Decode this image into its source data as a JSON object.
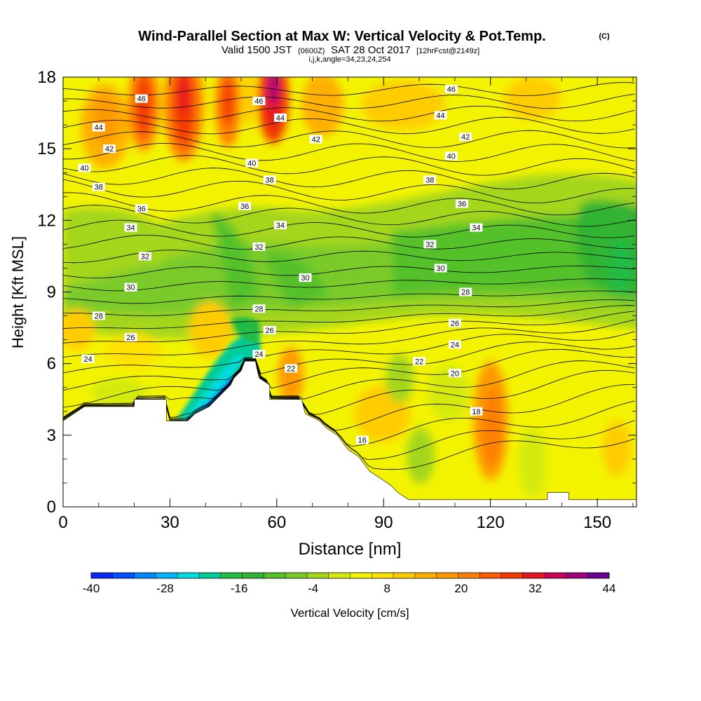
{
  "chart_data": {
    "type": "heatmap",
    "title": "Wind-Parallel Section at Max W: Vertical Velocity & Pot.Temp.",
    "title_mark": "(C)",
    "subtitle": {
      "prefix": "Valid 1500 JST",
      "utc": "(0600Z)",
      "date": "SAT 28 Oct 2017",
      "forecast": "[12hrFcst@2149z]"
    },
    "section_info": "i,j,k,angle=34,23,24,254",
    "xlabel": "Distance [nm]",
    "ylabel": "Height [Kft MSL]",
    "xlim": [
      0,
      161
    ],
    "ylim": [
      0,
      18
    ],
    "x_ticks": [
      "0",
      "30",
      "60",
      "90",
      "120",
      "150"
    ],
    "y_ticks": [
      "0",
      "3",
      "6",
      "9",
      "12",
      "15",
      "18"
    ],
    "colorbar": {
      "label": "Vertical Velocity [cm/s]",
      "tick_labels": [
        "-40",
        "-28",
        "-16",
        "-4",
        "8",
        "20",
        "32",
        "44"
      ],
      "colors": [
        "#0a28f5",
        "#0050ff",
        "#0084ff",
        "#00b4ff",
        "#00dcdc",
        "#00cc99",
        "#22bb44",
        "#33b333",
        "#55c12a",
        "#7acb2a",
        "#a4d61e",
        "#d4ea0a",
        "#f3f300",
        "#ffe100",
        "#ffcc00",
        "#ffb000",
        "#ff9900",
        "#ff7f00",
        "#ff5a00",
        "#f53a00",
        "#e8141e",
        "#c8005a",
        "#a0007a",
        "#6a0094"
      ]
    },
    "terrain_top_kft": [
      [
        0,
        3.6
      ],
      [
        3,
        3.9
      ],
      [
        6,
        4.2
      ],
      [
        20,
        4.2
      ],
      [
        20,
        4.5
      ],
      [
        29,
        4.5
      ],
      [
        29,
        3.6
      ],
      [
        35,
        3.6
      ],
      [
        37,
        3.9
      ],
      [
        41,
        4.2
      ],
      [
        43,
        4.5
      ],
      [
        45,
        4.8
      ],
      [
        47,
        5.1
      ],
      [
        48,
        5.4
      ],
      [
        50,
        5.7
      ],
      [
        51,
        6.1
      ],
      [
        54,
        6.1
      ],
      [
        55,
        5.4
      ],
      [
        58,
        5.1
      ],
      [
        58,
        4.5
      ],
      [
        67,
        4.5
      ],
      [
        68,
        3.9
      ],
      [
        72,
        3.6
      ],
      [
        74,
        3.3
      ],
      [
        77,
        3.0
      ],
      [
        80,
        2.4
      ],
      [
        83,
        2.1
      ],
      [
        86,
        1.5
      ],
      [
        89,
        1.2
      ],
      [
        92,
        0.9
      ],
      [
        94,
        0.6
      ],
      [
        97,
        0.3
      ],
      [
        136,
        0.3
      ],
      [
        136,
        0.6
      ],
      [
        142,
        0.6
      ],
      [
        142,
        0.3
      ],
      [
        161,
        0.3
      ]
    ],
    "isentrope_labels": [
      {
        "x": 22,
        "y": 17.1,
        "text": "46"
      },
      {
        "x": 55,
        "y": 17.0,
        "text": "46"
      },
      {
        "x": 109,
        "y": 17.5,
        "text": "46"
      },
      {
        "x": 10,
        "y": 15.9,
        "text": "44"
      },
      {
        "x": 61,
        "y": 16.3,
        "text": "44"
      },
      {
        "x": 106,
        "y": 16.4,
        "text": "44"
      },
      {
        "x": 13,
        "y": 15.0,
        "text": "42"
      },
      {
        "x": 71,
        "y": 15.4,
        "text": "42"
      },
      {
        "x": 113,
        "y": 15.5,
        "text": "42"
      },
      {
        "x": 6,
        "y": 14.2,
        "text": "40"
      },
      {
        "x": 53,
        "y": 14.4,
        "text": "40"
      },
      {
        "x": 109,
        "y": 14.7,
        "text": "40"
      },
      {
        "x": 10,
        "y": 13.4,
        "text": "38"
      },
      {
        "x": 58,
        "y": 13.7,
        "text": "38"
      },
      {
        "x": 103,
        "y": 13.7,
        "text": "38"
      },
      {
        "x": 22,
        "y": 12.5,
        "text": "36"
      },
      {
        "x": 51,
        "y": 12.6,
        "text": "36"
      },
      {
        "x": 112,
        "y": 12.7,
        "text": "36"
      },
      {
        "x": 19,
        "y": 11.7,
        "text": "34"
      },
      {
        "x": 61,
        "y": 11.8,
        "text": "34"
      },
      {
        "x": 116,
        "y": 11.7,
        "text": "34"
      },
      {
        "x": 23,
        "y": 10.5,
        "text": "32"
      },
      {
        "x": 55,
        "y": 10.9,
        "text": "32"
      },
      {
        "x": 103,
        "y": 11.0,
        "text": "32"
      },
      {
        "x": 19,
        "y": 9.2,
        "text": "30"
      },
      {
        "x": 68,
        "y": 9.6,
        "text": "30"
      },
      {
        "x": 106,
        "y": 10.0,
        "text": "30"
      },
      {
        "x": 10,
        "y": 8.0,
        "text": "28"
      },
      {
        "x": 55,
        "y": 8.3,
        "text": "28"
      },
      {
        "x": 113,
        "y": 9.0,
        "text": "28"
      },
      {
        "x": 19,
        "y": 7.1,
        "text": "26"
      },
      {
        "x": 58,
        "y": 7.4,
        "text": "26"
      },
      {
        "x": 110,
        "y": 7.7,
        "text": "26"
      },
      {
        "x": 7,
        "y": 6.2,
        "text": "24"
      },
      {
        "x": 55,
        "y": 6.4,
        "text": "24"
      },
      {
        "x": 110,
        "y": 6.8,
        "text": "24"
      },
      {
        "x": 64,
        "y": 5.8,
        "text": "22"
      },
      {
        "x": 100,
        "y": 6.1,
        "text": "22"
      },
      {
        "x": 110,
        "y": 5.6,
        "text": "20"
      },
      {
        "x": 116,
        "y": 4.0,
        "text": "18"
      },
      {
        "x": 84,
        "y": 2.8,
        "text": "16"
      }
    ],
    "isentropes_kft_at_x0_x161": [
      [
        0.4,
        3.0
      ],
      [
        1.0,
        3.5
      ],
      [
        1.7,
        4.1
      ],
      [
        2.4,
        4.8
      ],
      [
        3.1,
        5.5
      ],
      [
        3.8,
        6.0
      ],
      [
        4.4,
        6.6
      ],
      [
        5.0,
        7.0
      ],
      [
        5.6,
        7.4
      ],
      [
        6.2,
        7.7
      ],
      [
        6.8,
        8.0
      ],
      [
        7.4,
        8.3
      ],
      [
        8.0,
        8.6
      ],
      [
        8.6,
        9.0
      ],
      [
        9.2,
        9.5
      ],
      [
        9.8,
        10.0
      ],
      [
        10.5,
        10.5
      ],
      [
        11.1,
        11.0
      ],
      [
        11.7,
        11.5
      ],
      [
        12.3,
        12.0
      ],
      [
        12.8,
        12.5
      ],
      [
        13.4,
        13.0
      ],
      [
        13.9,
        13.6
      ],
      [
        14.4,
        14.2
      ],
      [
        14.9,
        14.8
      ],
      [
        15.4,
        15.4
      ],
      [
        15.9,
        16.0
      ],
      [
        16.4,
        16.5
      ],
      [
        16.9,
        17.0
      ],
      [
        17.4,
        17.5
      ]
    ],
    "grid": false,
    "legend": "colorbar-bottom"
  }
}
